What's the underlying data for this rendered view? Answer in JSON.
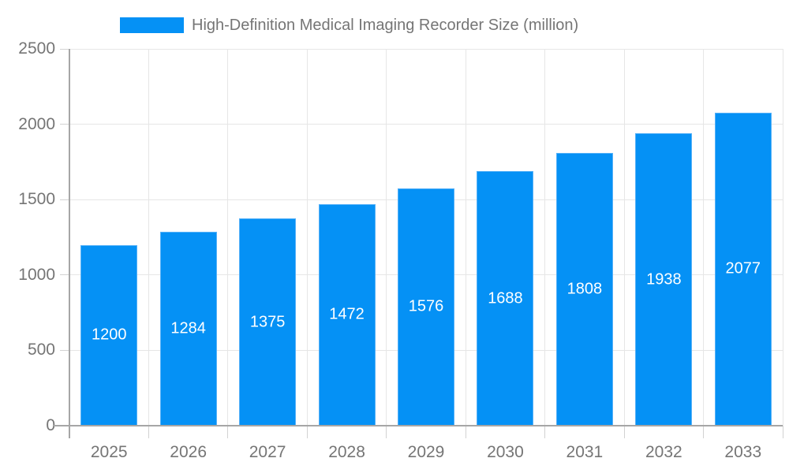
{
  "legend": {
    "label": "High-Definition Medical Imaging Recorder Size (million)"
  },
  "colors": {
    "bar": "#0591f5",
    "bar_border": "#56b1f8",
    "grid": "#e6e6e6",
    "axis": "#a6a6a6",
    "tick": "#d2d2d2",
    "text": "#757575",
    "value_label": "#ffffff",
    "background": "#ffffff"
  },
  "chart_data": {
    "type": "bar",
    "title": "High-Definition Medical Imaging Recorder Size (million)",
    "categories": [
      "2025",
      "2026",
      "2027",
      "2028",
      "2029",
      "2030",
      "2031",
      "2032",
      "2033"
    ],
    "values": [
      1200,
      1284,
      1375,
      1472,
      1576,
      1688,
      1808,
      1938,
      2077
    ],
    "xlabel": "",
    "ylabel": "",
    "ylim": [
      0,
      2500
    ],
    "ytick_step": 500,
    "ytick_labels": [
      "0",
      "500",
      "1000",
      "1500",
      "2000",
      "2500"
    ],
    "grid": true,
    "legend_position": "top",
    "value_labels_inside_bars": true
  }
}
